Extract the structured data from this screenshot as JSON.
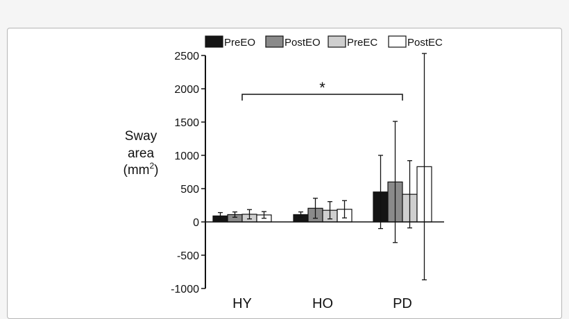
{
  "chart_data": {
    "type": "bar",
    "categories": [
      "HY",
      "HO",
      "PD"
    ],
    "ylabel": {
      "line1": "Sway",
      "line2": "area",
      "line3": "(mm",
      "sup": "2",
      "close": ")"
    },
    "ylim": [
      -1000,
      2500
    ],
    "yticks": [
      2500,
      2000,
      1500,
      1000,
      500,
      0,
      -500,
      -1000
    ],
    "legend_position": "top",
    "grid": false,
    "series": [
      {
        "name": "PreEO",
        "color": "#151515",
        "values": [
          90,
          110,
          450
        ],
        "errors": [
          50,
          40,
          550
        ]
      },
      {
        "name": "PostEO",
        "color": "#8a8a8a",
        "values": [
          110,
          205,
          600
        ],
        "errors": [
          40,
          150,
          910
        ]
      },
      {
        "name": "PreEC",
        "color": "#cfcfcf",
        "values": [
          115,
          175,
          415
        ],
        "errors": [
          70,
          130,
          505
        ]
      },
      {
        "name": "PostEC",
        "color": "#ffffff",
        "values": [
          105,
          190,
          830
        ],
        "errors": [
          50,
          130,
          1700
        ]
      }
    ],
    "annotation": {
      "text": "*",
      "from": "HY",
      "to": "PD"
    }
  }
}
